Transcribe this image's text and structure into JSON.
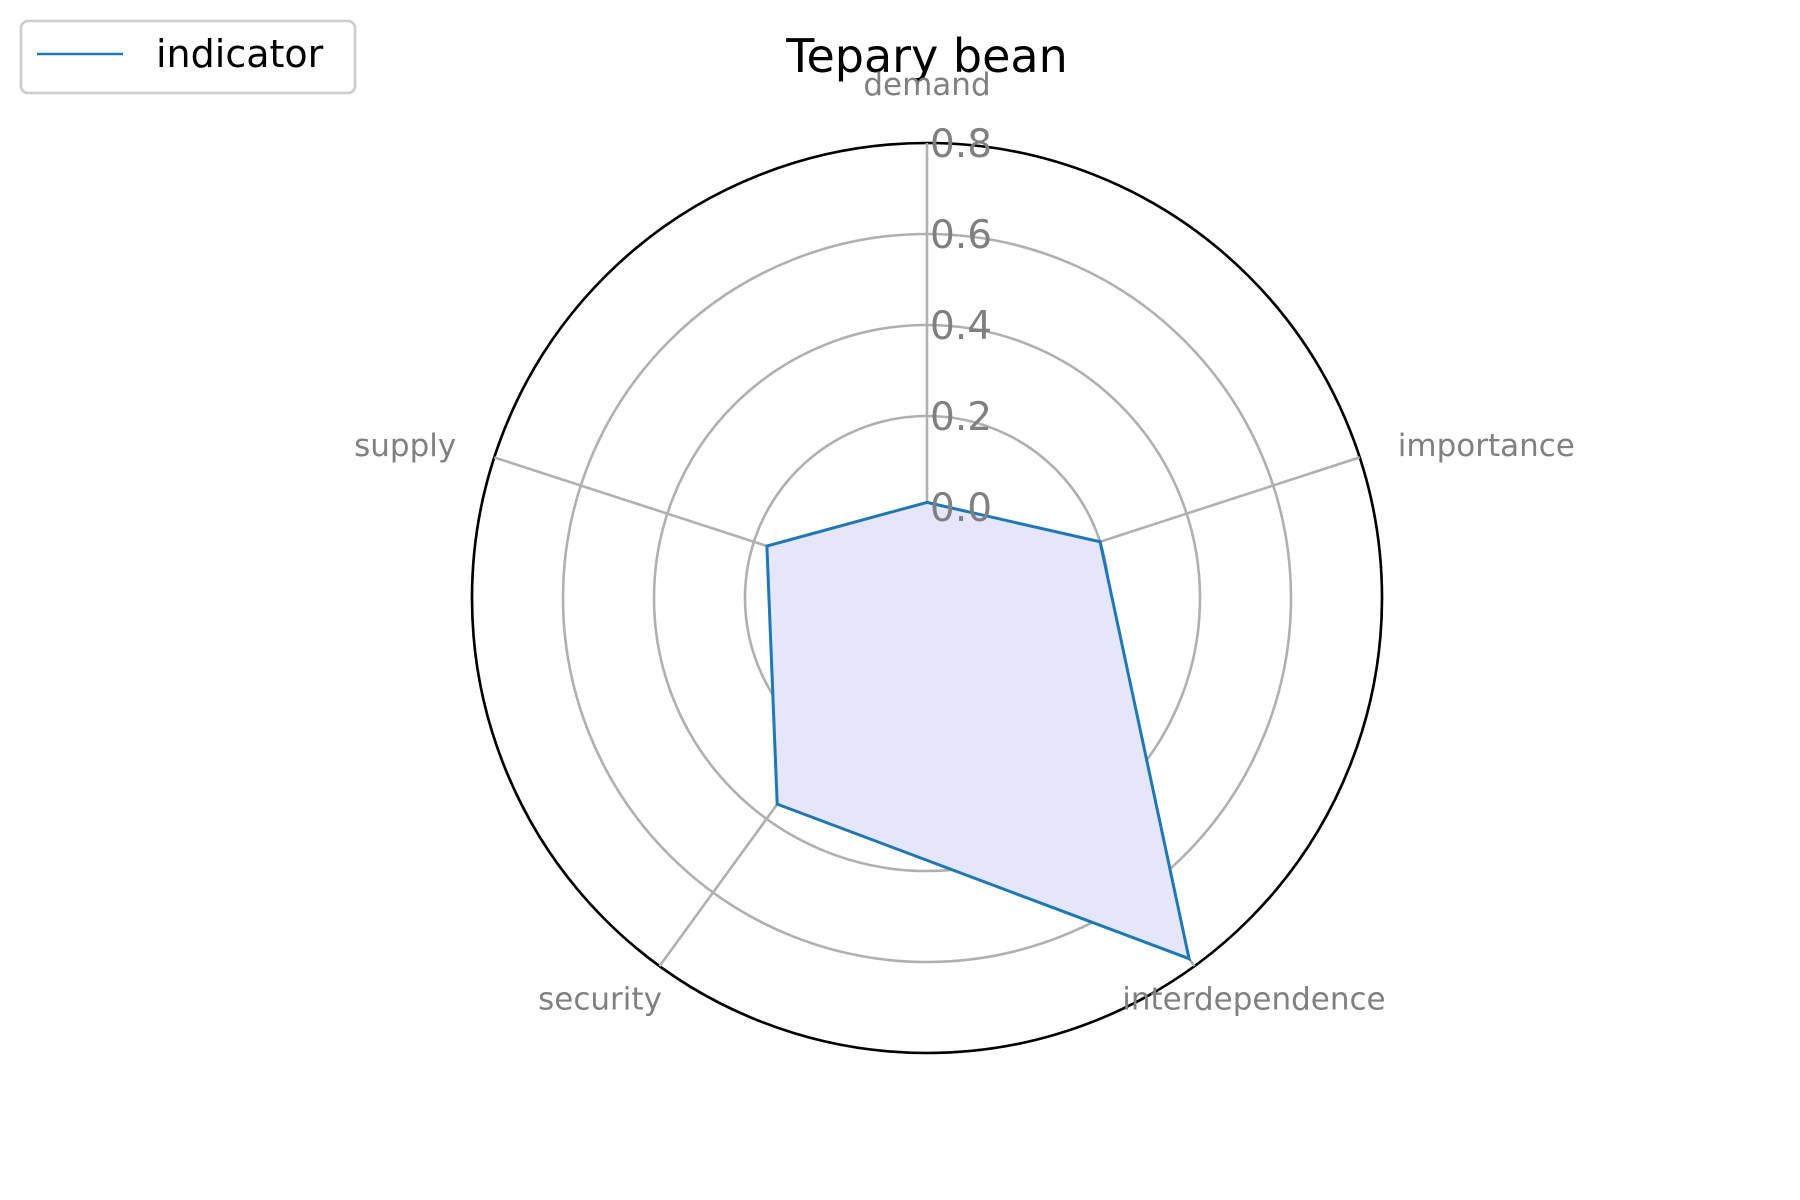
{
  "chart_data": {
    "type": "radar",
    "title": "Tepary bean",
    "axes": [
      "demand",
      "importance",
      "interdependence",
      "security",
      "supply"
    ],
    "series": [
      {
        "name": "indicator",
        "values": [
          0.01,
          0.2,
          0.78,
          0.36,
          0.17
        ],
        "line_color": "#1f77b4",
        "fill_color": "#e5e5fc"
      }
    ],
    "radial_ticks": [
      "0.0",
      "0.2",
      "0.4",
      "0.6",
      "0.8"
    ],
    "radial_tick_values": [
      0.0,
      0.2,
      0.4,
      0.6,
      0.8
    ],
    "rlim": [
      -0.2,
      0.8
    ],
    "grid": true,
    "legend_position": "top-left"
  }
}
